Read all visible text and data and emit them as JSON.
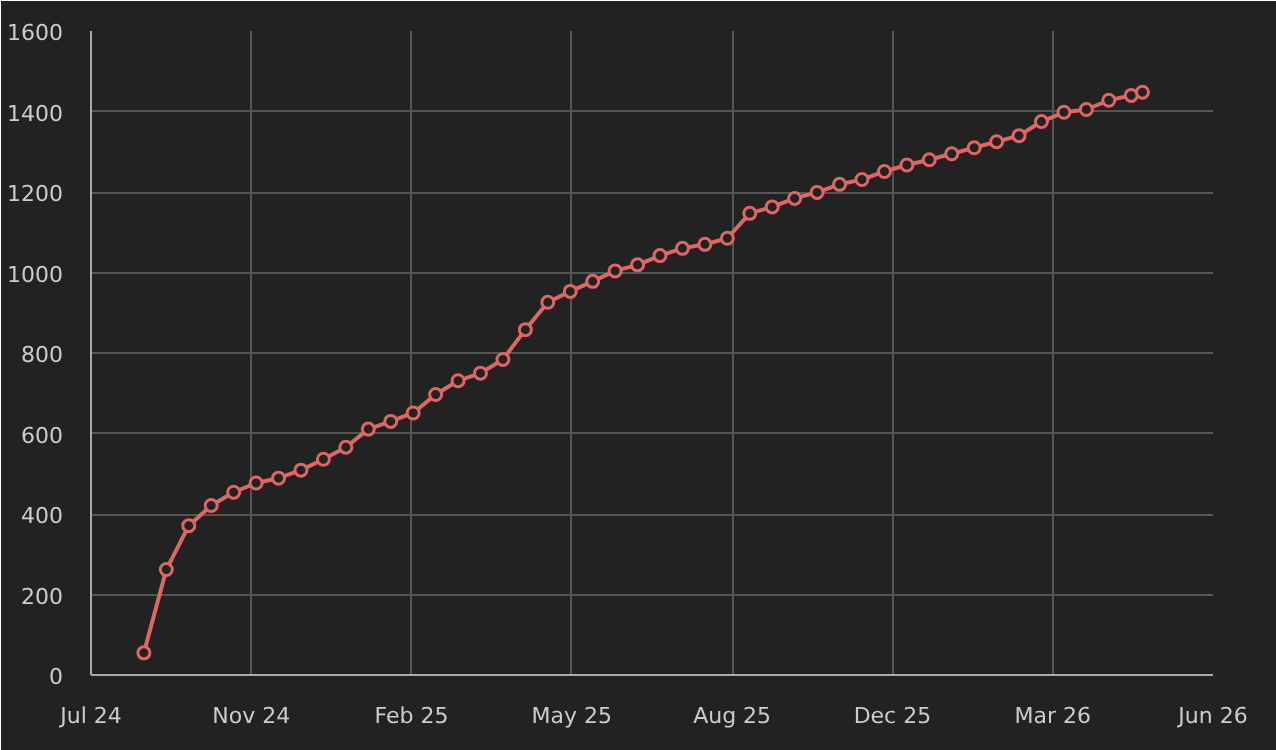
{
  "chart_data": {
    "type": "line",
    "x": [
      "2024-08-27",
      "2024-09-10",
      "2024-09-24",
      "2024-10-08",
      "2024-10-22",
      "2024-11-05",
      "2024-11-19",
      "2024-12-03",
      "2024-12-17",
      "2024-12-31",
      "2025-01-14",
      "2025-01-28",
      "2025-02-11",
      "2025-02-25",
      "2025-03-11",
      "2025-03-25",
      "2025-04-08",
      "2025-04-22",
      "2025-05-06",
      "2025-05-20",
      "2025-06-03",
      "2025-06-17",
      "2025-07-01",
      "2025-07-15",
      "2025-07-29",
      "2025-08-12",
      "2025-08-26",
      "2025-09-09",
      "2025-09-23",
      "2025-10-07",
      "2025-10-21",
      "2025-11-04",
      "2025-11-18",
      "2025-12-02",
      "2025-12-16",
      "2025-12-30",
      "2026-01-13",
      "2026-01-27",
      "2026-02-10",
      "2026-02-24",
      "2026-03-10",
      "2026-03-24",
      "2026-04-07",
      "2026-04-21",
      "2026-05-05",
      "2026-05-12"
    ],
    "series": [
      {
        "color": "#e06666",
        "values": [
          55,
          262,
          371,
          421,
          454,
          477,
          489,
          509,
          536,
          566,
          611,
          630,
          651,
          697,
          731,
          750,
          784,
          858,
          926,
          953,
          978,
          1004,
          1019,
          1042,
          1060,
          1070,
          1085,
          1147,
          1163,
          1184,
          1199,
          1219,
          1231,
          1251,
          1267,
          1280,
          1295,
          1310,
          1325,
          1340,
          1375,
          1398,
          1405,
          1428,
          1440,
          1448
        ]
      }
    ],
    "xlim": [
      "2024-07-25",
      "2026-06-25"
    ],
    "xticks": [
      {
        "value": "2024-07-25",
        "label": "Jul 24"
      },
      {
        "value": "2024-11-02",
        "label": "Nov 24"
      },
      {
        "value": "2025-02-10",
        "label": "Feb 25"
      },
      {
        "value": "2025-05-21",
        "label": "May 25"
      },
      {
        "value": "2025-08-29",
        "label": "Aug 25"
      },
      {
        "value": "2025-12-07",
        "label": "Dec 25"
      },
      {
        "value": "2026-03-17",
        "label": "Mar 26"
      },
      {
        "value": "2026-06-25",
        "label": "Jun 26"
      }
    ],
    "ylim": [
      0,
      1600
    ],
    "yticks": [
      0,
      200,
      400,
      600,
      800,
      1000,
      1200,
      1400,
      1600
    ],
    "grid": true,
    "marker": "circle",
    "line_style": "solid"
  }
}
